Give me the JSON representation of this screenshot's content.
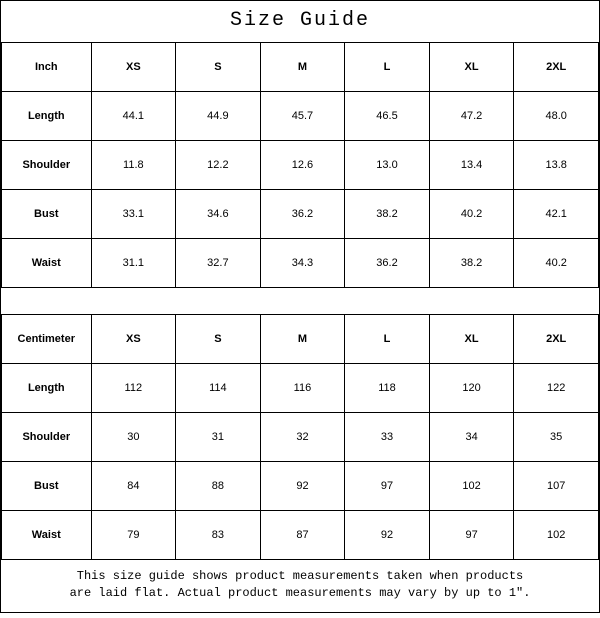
{
  "title": "Size Guide",
  "sizes": [
    "XS",
    "S",
    "M",
    "L",
    "XL",
    "2XL"
  ],
  "inch": {
    "unit": "Inch",
    "rows": [
      {
        "label": "Length",
        "values": [
          "44.1",
          "44.9",
          "45.7",
          "46.5",
          "47.2",
          "48.0"
        ]
      },
      {
        "label": "Shoulder",
        "values": [
          "11.8",
          "12.2",
          "12.6",
          "13.0",
          "13.4",
          "13.8"
        ]
      },
      {
        "label": "Bust",
        "values": [
          "33.1",
          "34.6",
          "36.2",
          "38.2",
          "40.2",
          "42.1"
        ]
      },
      {
        "label": "Waist",
        "values": [
          "31.1",
          "32.7",
          "34.3",
          "36.2",
          "38.2",
          "40.2"
        ]
      }
    ]
  },
  "cm": {
    "unit": "Centimeter",
    "rows": [
      {
        "label": "Length",
        "values": [
          "112",
          "114",
          "116",
          "118",
          "120",
          "122"
        ]
      },
      {
        "label": "Shoulder",
        "values": [
          "30",
          "31",
          "32",
          "33",
          "34",
          "35"
        ]
      },
      {
        "label": "Bust",
        "values": [
          "84",
          "88",
          "92",
          "97",
          "102",
          "107"
        ]
      },
      {
        "label": "Waist",
        "values": [
          "79",
          "83",
          "87",
          "92",
          "97",
          "102"
        ]
      }
    ]
  },
  "footer_line1": "This size guide shows product measurements taken when products",
  "footer_line2": "are laid flat. Actual product measurements may vary by up to 1\"."
}
